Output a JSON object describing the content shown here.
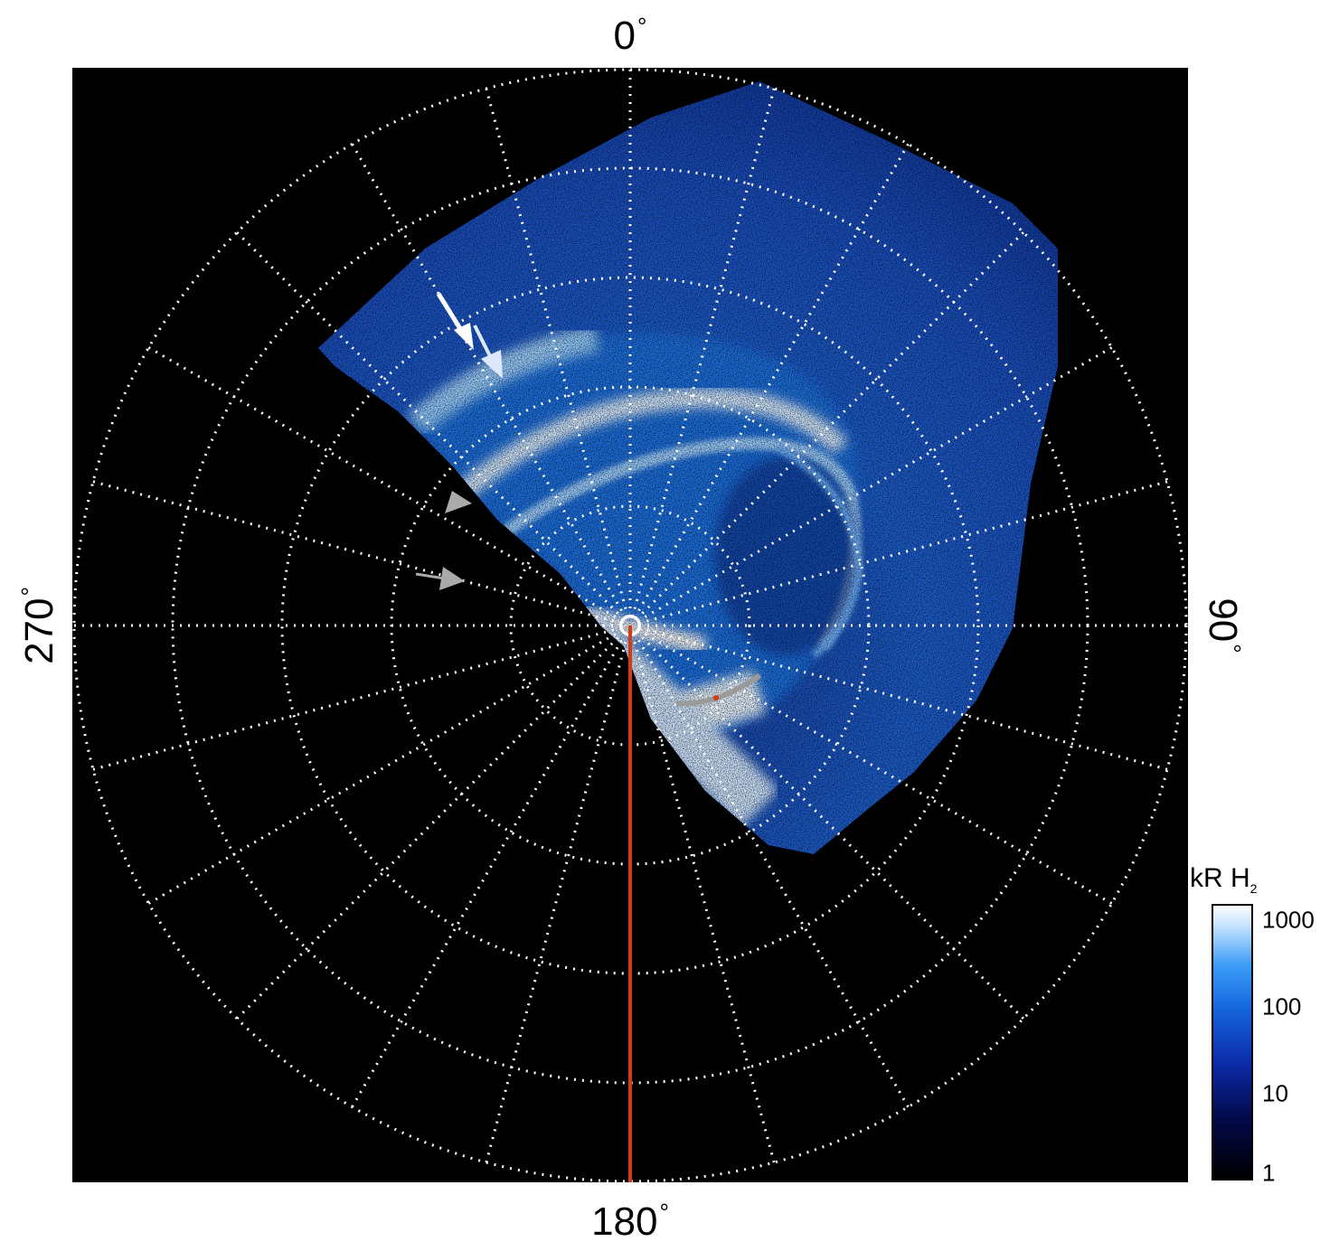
{
  "compass": {
    "top": "0",
    "right": "90",
    "bottom": "180",
    "left": "270",
    "degree_symbol": "°"
  },
  "colorbar": {
    "title": "kR H",
    "title_subscript": "2",
    "scale": "log",
    "ticks": [
      "1000",
      "100",
      "10",
      "1"
    ],
    "colors": [
      "#000000",
      "#0b2aa8",
      "#1565dd",
      "#3a9cf5",
      "#ffffff"
    ]
  },
  "annotations": {
    "meridian_line_color": "#d63a10",
    "track_color": "#9a9a9a",
    "arrow_white": "#ffffff",
    "arrow_gray": "#aaaaaa",
    "grid_color": "#ffffff"
  }
}
